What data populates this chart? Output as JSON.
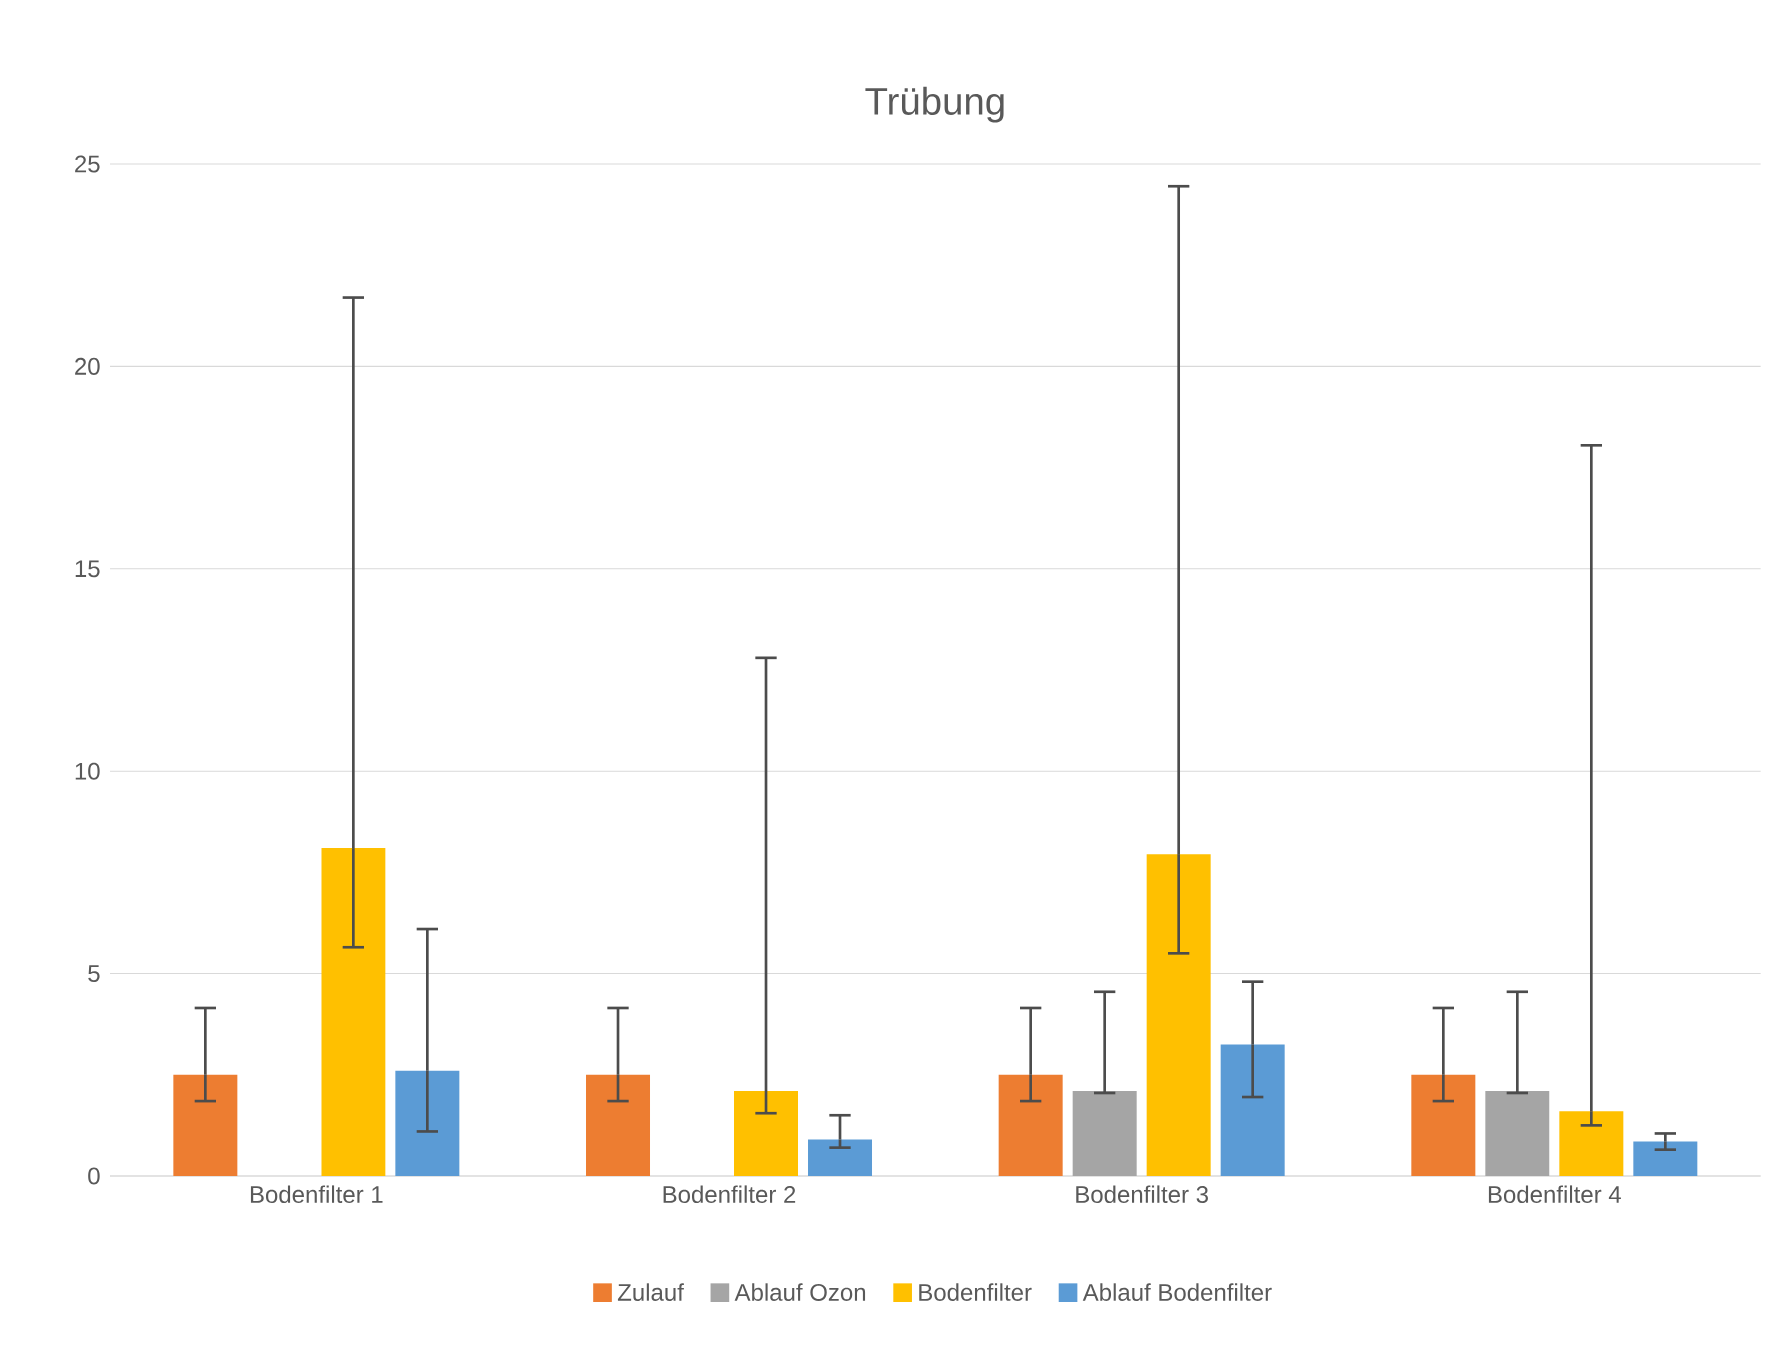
{
  "chart_data": {
    "type": "bar",
    "title": "Trübung",
    "categories": [
      "Bodenfilter 1",
      "Bodenfilter 2",
      "Bodenfilter 3",
      "Bodenfilter 4"
    ],
    "series": [
      {
        "name": "Zulauf",
        "color": "#ed7d31",
        "values": [
          2.5,
          2.5,
          2.5,
          2.5
        ],
        "errors": [
          [
            1.85,
            4.15
          ],
          [
            1.85,
            4.15
          ],
          [
            1.85,
            4.15
          ],
          [
            1.85,
            4.15
          ]
        ]
      },
      {
        "name": "Ablauf Ozon",
        "color": "#a5a5a5",
        "values": [
          null,
          null,
          2.1,
          2.1
        ],
        "errors": [
          null,
          null,
          [
            2.05,
            4.55
          ],
          [
            2.05,
            4.55
          ]
        ]
      },
      {
        "name": "Bodenfilter",
        "color": "#ffc000",
        "values": [
          8.1,
          2.1,
          7.95,
          1.6
        ],
        "errors": [
          [
            5.65,
            21.7
          ],
          [
            1.55,
            12.8
          ],
          [
            5.5,
            24.45
          ],
          [
            1.25,
            18.05
          ]
        ]
      },
      {
        "name": "Ablauf Bodenfilter",
        "color": "#5b9bd5",
        "values": [
          2.6,
          0.9,
          3.25,
          0.85
        ],
        "errors": [
          [
            1.1,
            6.1
          ],
          [
            0.7,
            1.5
          ],
          [
            1.95,
            4.8
          ],
          [
            0.65,
            1.05
          ]
        ]
      }
    ],
    "ylim": [
      0,
      25
    ],
    "yticks": [
      0,
      5,
      10,
      15,
      20,
      25
    ],
    "grid": "y",
    "legend": "bottom"
  }
}
